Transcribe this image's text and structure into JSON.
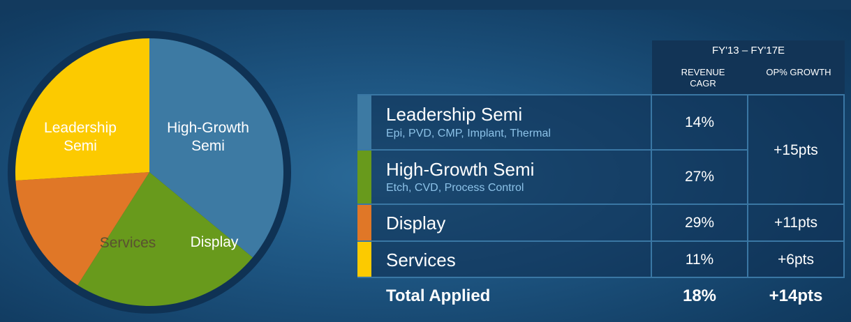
{
  "chart_data": [
    {
      "type": "pie",
      "slices": [
        {
          "label": "Leadership Semi",
          "label_lines": [
            "Leadership",
            "Semi"
          ],
          "value": 36,
          "color": "#3d7aa3"
        },
        {
          "label": "High-Growth Semi",
          "label_lines": [
            "High-Growth",
            "Semi"
          ],
          "value": 23,
          "color": "#689a1c"
        },
        {
          "label": "Display",
          "label_lines": [
            "Display"
          ],
          "value": 15,
          "color": "#e07727"
        },
        {
          "label": "Services",
          "label_lines": [
            "Services"
          ],
          "value": 26,
          "color": "#fcca00"
        }
      ]
    },
    {
      "type": "table",
      "header_group": "FY'13 – FY'17E",
      "columns": [
        "REVENUE CAGR",
        "OP% GROWTH"
      ],
      "rows": [
        {
          "segment": "Leadership Semi",
          "detail": "Epi, PVD, CMP, Implant, Thermal",
          "revenue_cagr": "14%",
          "color": "#3d7aa3"
        },
        {
          "segment": "High-Growth Semi",
          "detail": "Etch, CVD, Process Control",
          "revenue_cagr": "27%",
          "color": "#689a1c"
        },
        {
          "segment": "Display",
          "detail": "",
          "revenue_cagr": "29%",
          "op_growth": "+11pts",
          "color": "#e07727"
        },
        {
          "segment": "Services",
          "detail": "",
          "revenue_cagr": "11%",
          "op_growth": "+6pts",
          "color": "#fcca00"
        }
      ],
      "semi_op_growth": "+15pts",
      "total": {
        "label": "Total Applied",
        "revenue_cagr": "18%",
        "op_growth": "+14pts"
      }
    }
  ]
}
